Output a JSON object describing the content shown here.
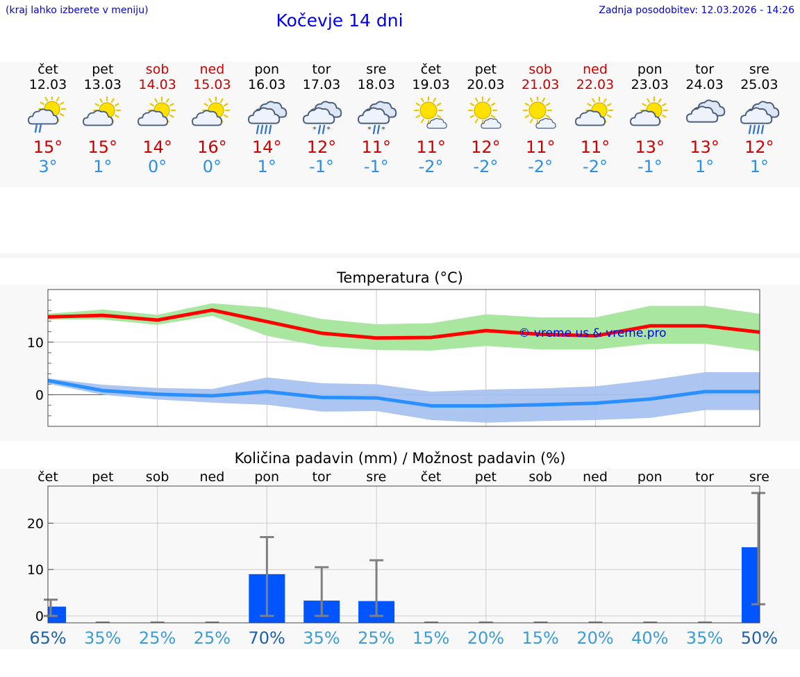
{
  "header": {
    "hint": "(kraj lahko izberete v meniju)",
    "title": "Kočevje 14 dni",
    "updated": "Zadnja posodobitev: 12.03.2026 - 14:26"
  },
  "days": [
    {
      "name": "čet",
      "date": "12.03",
      "max": "15°",
      "min": "3°",
      "icon": "partly-sunny-rain",
      "weekend": false
    },
    {
      "name": "pet",
      "date": "13.03",
      "max": "15°",
      "min": "1°",
      "icon": "partly-sunny",
      "weekend": false
    },
    {
      "name": "sob",
      "date": "14.03",
      "max": "14°",
      "min": "0°",
      "icon": "partly-sunny",
      "weekend": true
    },
    {
      "name": "ned",
      "date": "15.03",
      "max": "16°",
      "min": "0°",
      "icon": "partly-sunny",
      "weekend": true
    },
    {
      "name": "pon",
      "date": "16.03",
      "max": "14°",
      "min": "1°",
      "icon": "rain-cloud",
      "weekend": false
    },
    {
      "name": "tor",
      "date": "17.03",
      "max": "12°",
      "min": "-1°",
      "icon": "sleet-cloud",
      "weekend": false
    },
    {
      "name": "sre",
      "date": "18.03",
      "max": "11°",
      "min": "-1°",
      "icon": "sleet-cloud",
      "weekend": false
    },
    {
      "name": "čet",
      "date": "19.03",
      "max": "11°",
      "min": "-2°",
      "icon": "mostly-sunny",
      "weekend": false
    },
    {
      "name": "pet",
      "date": "20.03",
      "max": "12°",
      "min": "-2°",
      "icon": "mostly-sunny",
      "weekend": false
    },
    {
      "name": "sob",
      "date": "21.03",
      "max": "11°",
      "min": "-2°",
      "icon": "mostly-sunny",
      "weekend": true
    },
    {
      "name": "ned",
      "date": "22.03",
      "max": "11°",
      "min": "-2°",
      "icon": "partly-sunny",
      "weekend": true
    },
    {
      "name": "pon",
      "date": "23.03",
      "max": "13°",
      "min": "-1°",
      "icon": "partly-sunny",
      "weekend": false
    },
    {
      "name": "tor",
      "date": "24.03",
      "max": "13°",
      "min": "1°",
      "icon": "cloudy",
      "weekend": false
    },
    {
      "name": "sre",
      "date": "25.03",
      "max": "12°",
      "min": "1°",
      "icon": "rain-cloud",
      "weekend": false
    }
  ],
  "colors": {
    "max_line": "#ff0000",
    "max_band": "#a9e6a0",
    "min_line": "#2a8fff",
    "min_band": "#a9c2f0",
    "bar": "#0055ff",
    "whisker": "#808080",
    "watermark": "#0000ee"
  },
  "chart_data": [
    {
      "type": "line",
      "title": "Temperatura (°C)",
      "watermark": "© vreme.us & vreme.pro",
      "ylim": [
        -6,
        20
      ],
      "yticks": [
        "10",
        "0"
      ],
      "x": [
        0,
        1,
        2,
        3,
        4,
        5,
        6,
        7,
        8,
        9,
        10,
        11,
        12,
        13
      ],
      "series": [
        {
          "name": "max",
          "values": [
            14.8,
            15.1,
            14.2,
            16.1,
            13.9,
            11.7,
            10.8,
            10.9,
            12.2,
            11.5,
            11.2,
            13.1,
            13.1,
            11.9
          ],
          "band_low": [
            14.3,
            14.3,
            13.3,
            15.0,
            11.2,
            9.2,
            8.5,
            8.4,
            9.3,
            8.6,
            8.6,
            9.7,
            9.7,
            8.3
          ],
          "band_high": [
            15.4,
            16.2,
            15.2,
            17.4,
            16.6,
            14.4,
            13.4,
            13.6,
            15.3,
            14.7,
            14.7,
            16.9,
            16.9,
            15.4
          ]
        },
        {
          "name": "min",
          "values": [
            2.7,
            0.8,
            0.1,
            -0.2,
            0.6,
            -0.5,
            -0.6,
            -2.1,
            -2.1,
            -1.9,
            -1.6,
            -0.8,
            0.6,
            0.6
          ],
          "band_low": [
            2.1,
            0.0,
            -0.9,
            -1.5,
            -1.9,
            -3.2,
            -3.1,
            -4.8,
            -5.3,
            -5.0,
            -4.8,
            -4.4,
            -2.9,
            -2.9
          ],
          "band_high": [
            3.1,
            1.9,
            1.3,
            1.1,
            3.3,
            2.2,
            2.0,
            0.6,
            1.0,
            1.2,
            1.6,
            2.8,
            4.3,
            4.3
          ]
        }
      ]
    },
    {
      "type": "bar",
      "title": "Količina padavin (mm) / Možnost padavin (%)",
      "categories": [
        "čet",
        "pet",
        "sob",
        "ned",
        "pon",
        "tor",
        "sre",
        "čet",
        "pet",
        "sob",
        "ned",
        "pon",
        "tor",
        "sre"
      ],
      "values": [
        2.0,
        0,
        0,
        0,
        9.0,
        3.3,
        3.2,
        0,
        0,
        0,
        0,
        0,
        0,
        14.8
      ],
      "err_low": [
        0,
        0,
        0,
        0,
        0,
        0,
        0,
        0,
        0,
        0,
        0,
        0,
        0,
        2.5
      ],
      "err_high": [
        3.5,
        0,
        0,
        0,
        17,
        10.5,
        12,
        0,
        0,
        0,
        0,
        0,
        0,
        26.5
      ],
      "probability": [
        "65%",
        "35%",
        "25%",
        "25%",
        "70%",
        "35%",
        "25%",
        "15%",
        "20%",
        "15%",
        "20%",
        "40%",
        "35%",
        "50%"
      ],
      "ylim": [
        -1.5,
        28
      ],
      "yticks": [
        "20",
        "10",
        "0"
      ]
    }
  ]
}
